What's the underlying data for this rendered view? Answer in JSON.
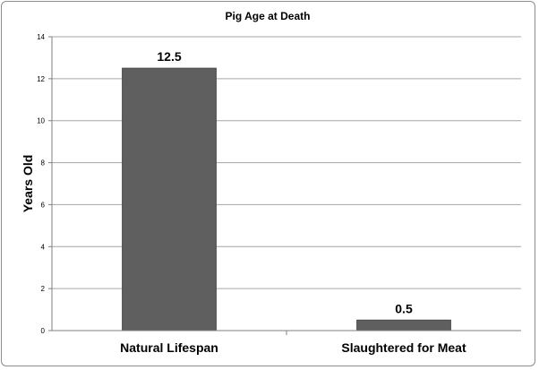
{
  "chart_data": {
    "type": "bar",
    "title": "Pig Age at Death",
    "ylabel": "Years Old",
    "xlabel": "",
    "categories": [
      "Natural Lifespan",
      "Slaughtered for Meat"
    ],
    "values": [
      12.5,
      0.5
    ],
    "data_labels": [
      "12.5",
      "0.5"
    ],
    "ylim": [
      0,
      14
    ],
    "yticks": [
      0,
      2,
      4,
      6,
      8,
      10,
      12,
      14
    ],
    "grid": true,
    "legend": "none",
    "colors": {
      "bar": "#5f5f5f",
      "bar_edge": "#4a4a4a",
      "grid": "#a6a6a6",
      "axis": "#7f7f7f",
      "text": "#000000"
    }
  }
}
